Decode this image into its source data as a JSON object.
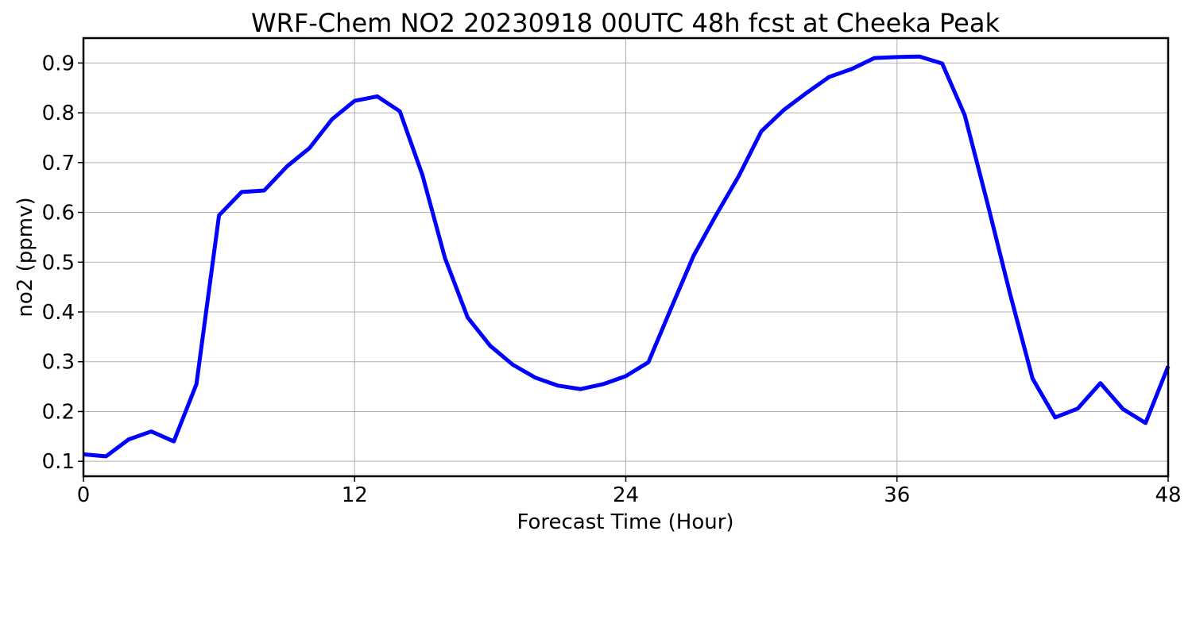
{
  "chart_data": {
    "type": "line",
    "title": "WRF-Chem NO2  20230918 00UTC 48h fcst at Cheeka Peak",
    "xlabel": "Forecast Time (Hour)",
    "ylabel": "no2  (ppmv)",
    "xlim": [
      0,
      48
    ],
    "ylim": [
      0.07,
      0.95
    ],
    "xticks": [
      0,
      12,
      24,
      36,
      48
    ],
    "yticks": [
      0.1,
      0.2,
      0.3,
      0.4,
      0.5,
      0.6,
      0.7,
      0.8,
      0.9
    ],
    "grid": true,
    "line_color": "#0000ff",
    "series": [
      {
        "x": [
          0,
          1,
          2,
          3,
          4,
          5,
          6,
          7,
          8,
          9,
          10,
          11,
          12,
          13,
          14,
          15,
          16,
          17,
          18,
          19,
          20,
          21,
          22,
          23,
          24,
          25,
          26,
          27,
          28,
          29,
          30,
          31,
          32,
          33,
          34,
          35,
          36,
          37,
          38,
          39,
          40,
          41,
          42,
          43,
          44,
          45,
          46,
          47,
          48
        ],
        "values": [
          0.114,
          0.11,
          0.144,
          0.16,
          0.14,
          0.255,
          0.594,
          0.641,
          0.644,
          0.692,
          0.729,
          0.787,
          0.824,
          0.833,
          0.803,
          0.675,
          0.508,
          0.389,
          0.332,
          0.294,
          0.268,
          0.252,
          0.245,
          0.255,
          0.271,
          0.299,
          0.407,
          0.513,
          0.595,
          0.673,
          0.763,
          0.806,
          0.84,
          0.872,
          0.888,
          0.91,
          0.912,
          0.913,
          0.899,
          0.795,
          0.619,
          0.437,
          0.266,
          0.188,
          0.206,
          0.257,
          0.205,
          0.177,
          0.291
        ]
      }
    ]
  }
}
